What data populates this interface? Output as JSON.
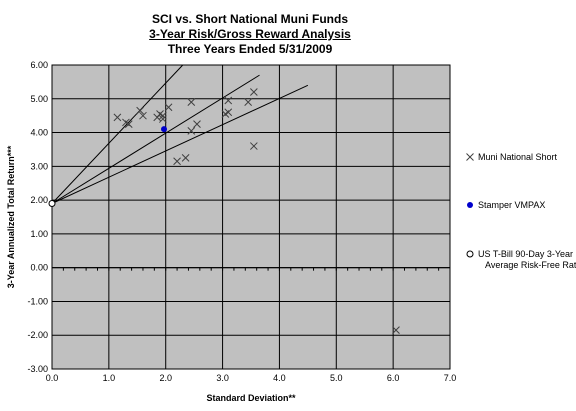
{
  "chart_data": {
    "type": "scatter",
    "title": "SCI vs. Short National Muni Funds",
    "subtitle": "3-Year Risk/Gross Reward Analysis",
    "subtitle2": "Three Years Ended 5/31/2009",
    "xlabel": "Standard Deviation**",
    "ylabel": "3-Year Annualized Total Return***",
    "xlim": [
      0,
      7
    ],
    "ylim": [
      -3,
      6
    ],
    "x_ticks": [
      "0.0",
      "1.0",
      "2.0",
      "3.0",
      "4.0",
      "5.0",
      "6.0",
      "7.0"
    ],
    "y_ticks": [
      "-3.00",
      "-2.00",
      "-1.00",
      "0.00",
      "1.00",
      "2.00",
      "3.00",
      "4.00",
      "5.00",
      "6.00"
    ],
    "grid": "horizontal and vertical major gridlines",
    "legend_position": "right",
    "series": [
      {
        "name": "Muni National Short",
        "marker": "x",
        "color": "#404040",
        "points": [
          [
            1.15,
            4.45
          ],
          [
            1.3,
            4.3
          ],
          [
            1.35,
            4.25
          ],
          [
            1.55,
            4.65
          ],
          [
            1.6,
            4.5
          ],
          [
            1.85,
            4.45
          ],
          [
            1.9,
            4.55
          ],
          [
            1.95,
            4.5
          ],
          [
            1.95,
            4.4
          ],
          [
            2.05,
            4.75
          ],
          [
            2.2,
            3.15
          ],
          [
            2.35,
            3.25
          ],
          [
            2.45,
            4.05
          ],
          [
            2.45,
            4.9
          ],
          [
            2.55,
            4.25
          ],
          [
            3.05,
            4.55
          ],
          [
            3.1,
            4.6
          ],
          [
            3.1,
            4.95
          ],
          [
            3.45,
            4.9
          ],
          [
            3.55,
            5.2
          ],
          [
            3.55,
            3.6
          ],
          [
            6.05,
            -1.85
          ]
        ]
      },
      {
        "name": "Stamper VMPAX",
        "marker": "dot",
        "color": "#0000cc",
        "points": [
          [
            1.97,
            4.1
          ]
        ]
      },
      {
        "name": "US T-Bill 90-Day 3-Year Average Risk-Free Rate",
        "marker": "circle",
        "color": "#000000",
        "points": [
          [
            0.0,
            1.9
          ]
        ]
      }
    ],
    "reference_lines": [
      {
        "from": [
          0.0,
          1.9
        ],
        "to": [
          2.3,
          6.0
        ]
      },
      {
        "from": [
          0.0,
          1.9
        ],
        "to": [
          3.65,
          5.7
        ]
      },
      {
        "from": [
          0.0,
          1.9
        ],
        "to": [
          4.5,
          5.4
        ]
      }
    ],
    "colors": {
      "plot_background": "#c0c0c0",
      "gridline": "#000000"
    }
  }
}
